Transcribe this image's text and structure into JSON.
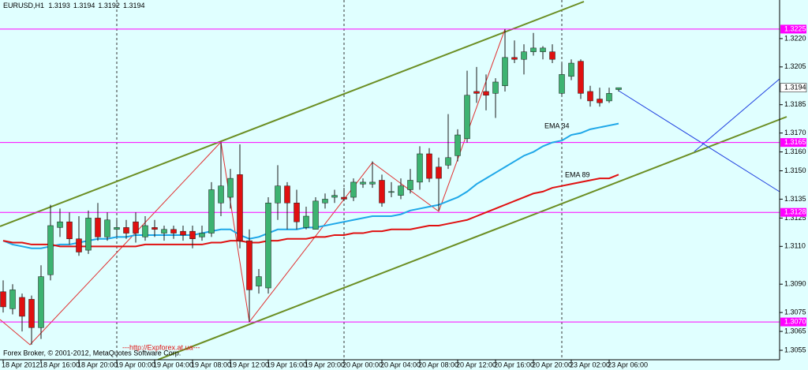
{
  "chart_data": {
    "type": "candlestick",
    "symbol": "EURUSD,H1",
    "annotations": [
      "Forex Broker, © 2001-2012, MetaQuotes Software Corp.",
      "---http://Expforex.at.ua---"
    ],
    "categories": [
      "18 Apr 2012",
      null,
      null,
      null,
      "18 Apr 16:00",
      null,
      null,
      null,
      "18 Apr 20:00",
      null,
      null,
      null,
      "19 Apr 00:00",
      null,
      null,
      null,
      "19 Apr 04:00",
      null,
      null,
      null,
      "19 Apr 08:00",
      null,
      null,
      null,
      "19 Apr 12:00",
      null,
      null,
      null,
      "19 Apr 16:00",
      null,
      null,
      null,
      "19 Apr 20:00",
      null,
      null,
      null,
      "20 Apr 00:00",
      null,
      null,
      null,
      "20 Apr 04:00",
      null,
      null,
      null,
      "20 Apr 08:00",
      null,
      null,
      null,
      "20 Apr 12:00",
      null,
      null,
      null,
      "20 Apr 16:00",
      null,
      null,
      null,
      "20 Apr 20:00",
      null,
      null,
      null,
      "23 Apr 02:00",
      null,
      null,
      null,
      "23 Apr 06:00",
      null
    ],
    "open": [
      1.3086,
      1.3077,
      1.3083,
      1.3082,
      1.3067,
      1.3095,
      1.312,
      1.3123,
      1.3114,
      1.3108,
      1.3125,
      1.3115,
      1.3119,
      1.312,
      1.3123,
      1.3115,
      1.312,
      1.3117,
      1.3119,
      1.3118,
      1.3118,
      1.3115,
      1.3117,
      1.3133,
      1.3136,
      1.3148,
      1.3113,
      1.3089,
      1.3088,
      1.3133,
      1.3142,
      1.3133,
      1.312,
      1.3119,
      1.3133,
      1.3136,
      1.3136,
      1.3136,
      1.3143,
      1.3143,
      1.3145,
      1.3139,
      1.3137,
      1.314,
      1.3144,
      1.3159,
      1.3152,
      1.3153,
      1.3158,
      1.3167,
      1.3192,
      1.3192,
      1.3191,
      1.3195,
      1.321,
      1.3209,
      1.3213,
      1.3213,
      1.3213,
      1.3191,
      1.32,
      1.3208,
      1.3192,
      1.3188,
      1.3187,
      1.3193
    ],
    "high": [
      1.3092,
      1.309,
      1.3085,
      1.3084,
      1.31,
      1.3132,
      1.313,
      1.3128,
      1.3126,
      1.3129,
      1.3133,
      1.3128,
      1.3124,
      1.3124,
      1.3128,
      1.3126,
      1.3124,
      1.3121,
      1.3121,
      1.3121,
      1.3121,
      1.3121,
      1.3144,
      1.3165,
      1.3151,
      1.3164,
      1.3119,
      1.3098,
      1.3136,
      1.3153,
      1.3144,
      1.314,
      1.3131,
      1.3136,
      1.3138,
      1.314,
      1.3141,
      1.3146,
      1.3146,
      1.3155,
      1.3148,
      1.3144,
      1.3146,
      1.3151,
      1.3163,
      1.3162,
      1.3157,
      1.318,
      1.3172,
      1.3203,
      1.3205,
      1.3201,
      1.3199,
      1.3225,
      1.3219,
      1.3217,
      1.3223,
      1.3216,
      1.3217,
      1.3207,
      1.3209,
      1.3209,
      1.3195,
      1.3194,
      1.3194,
      1.3194
    ],
    "low": [
      1.3075,
      1.3074,
      1.3065,
      1.3058,
      1.3061,
      1.3092,
      1.3115,
      1.3111,
      1.3105,
      1.3106,
      1.3113,
      1.3113,
      1.3115,
      1.3114,
      1.3112,
      1.3113,
      1.3115,
      1.3113,
      1.3114,
      1.3113,
      1.3109,
      1.3113,
      1.3115,
      1.3126,
      1.313,
      1.3109,
      1.307,
      1.3085,
      1.3085,
      1.3124,
      1.3119,
      1.3119,
      1.3119,
      1.3119,
      1.313,
      1.3133,
      1.3134,
      1.3134,
      1.3141,
      1.3141,
      1.3131,
      1.3136,
      1.3135,
      1.3138,
      1.314,
      1.3144,
      1.3129,
      1.3151,
      1.3155,
      1.3165,
      1.3186,
      1.3182,
      1.3178,
      1.3192,
      1.3207,
      1.3201,
      1.3211,
      1.3209,
      1.3207,
      1.319,
      1.3198,
      1.3188,
      1.3184,
      1.3184,
      1.3186,
      1.3192
    ],
    "close": [
      1.3078,
      1.3087,
      1.3073,
      1.3067,
      1.3094,
      1.3121,
      1.3123,
      1.3114,
      1.3107,
      1.3125,
      1.3115,
      1.3124,
      1.312,
      1.3117,
      1.3117,
      1.3121,
      1.3119,
      1.3119,
      1.3117,
      1.3116,
      1.3114,
      1.3117,
      1.314,
      1.3142,
      1.3146,
      1.3113,
      1.3087,
      1.3094,
      1.3133,
      1.3142,
      1.3133,
      1.3123,
      1.3126,
      1.3134,
      1.3135,
      1.3137,
      1.3135,
      1.3144,
      1.3144,
      1.3144,
      1.3133,
      1.3139,
      1.3142,
      1.3145,
      1.3159,
      1.3146,
      1.3146,
      1.3157,
      1.3169,
      1.319,
      1.3191,
      1.319,
      1.3197,
      1.321,
      1.3209,
      1.3213,
      1.3215,
      1.3215,
      1.3209,
      1.3201,
      1.3207,
      1.3191,
      1.3187,
      1.3186,
      1.3191,
      1.3194
    ],
    "up_color": "#3cb371",
    "down_color": "#e01010",
    "series": [
      {
        "name": "EMA 34",
        "color": "#1ea7e8",
        "values": [
          1.3113,
          1.3111,
          1.311,
          1.3109,
          1.3109,
          1.311,
          1.3111,
          1.3111,
          1.3112,
          1.3113,
          1.3114,
          1.3114,
          1.3115,
          1.3115,
          1.3116,
          1.3116,
          1.3116,
          1.3116,
          1.3116,
          1.3116,
          1.3116,
          1.3117,
          1.3118,
          1.3119,
          1.3119,
          1.3116,
          1.3114,
          1.3115,
          1.3117,
          1.3119,
          1.3119,
          1.3119,
          1.312,
          1.312,
          1.3121,
          1.3122,
          1.3123,
          1.3124,
          1.3125,
          1.3126,
          1.3126,
          1.3126,
          1.3127,
          1.3129,
          1.313,
          1.3131,
          1.3132,
          1.3134,
          1.3136,
          1.3139,
          1.3143,
          1.3146,
          1.3149,
          1.3152,
          1.3155,
          1.3158,
          1.316,
          1.3163,
          1.3165,
          1.3166,
          1.3169,
          1.317,
          1.3172,
          1.3173,
          1.3174,
          1.3175
        ]
      },
      {
        "name": "EMA 89",
        "color": "#e01010",
        "values": [
          1.3113,
          1.3112,
          1.3112,
          1.3111,
          1.3111,
          1.3111,
          1.311,
          1.311,
          1.311,
          1.311,
          1.311,
          1.311,
          1.311,
          1.311,
          1.311,
          1.3111,
          1.3111,
          1.3111,
          1.3111,
          1.3111,
          1.3111,
          1.3111,
          1.3112,
          1.3112,
          1.3113,
          1.3113,
          1.3112,
          1.3112,
          1.3113,
          1.3113,
          1.3114,
          1.3114,
          1.3114,
          1.3115,
          1.3115,
          1.3116,
          1.3116,
          1.3117,
          1.3117,
          1.3118,
          1.3118,
          1.3119,
          1.3119,
          1.3119,
          1.312,
          1.3121,
          1.3121,
          1.3122,
          1.3123,
          1.3124,
          1.3126,
          1.3128,
          1.313,
          1.3132,
          1.3134,
          1.3136,
          1.3138,
          1.3139,
          1.3141,
          1.3142,
          1.3143,
          1.3144,
          1.3145,
          1.3146,
          1.3146,
          1.3148
        ]
      }
    ],
    "levels": [
      1.3225,
      1.3165,
      1.3128,
      {
        "value": 1.307,
        "label": "1.3070"
      }
    ],
    "level_color": "#ff00ff",
    "last_price": 1.3194,
    "ylim": [
      1.305,
      1.324
    ],
    "yticks": [
      {
        "value": 1.322,
        "label": "1.3220"
      },
      1.3205,
      1.3185,
      {
        "value": 1.317,
        "label": "1.3170"
      },
      {
        "value": 1.316,
        "label": "1.3160"
      },
      {
        "value": 1.315,
        "label": "1.3150"
      },
      1.3135,
      1.3125,
      {
        "value": 1.311,
        "label": "1.3110"
      },
      {
        "value": 1.309,
        "label": "1.3090"
      },
      1.3075,
      1.3065,
      1.3055
    ]
  }
}
